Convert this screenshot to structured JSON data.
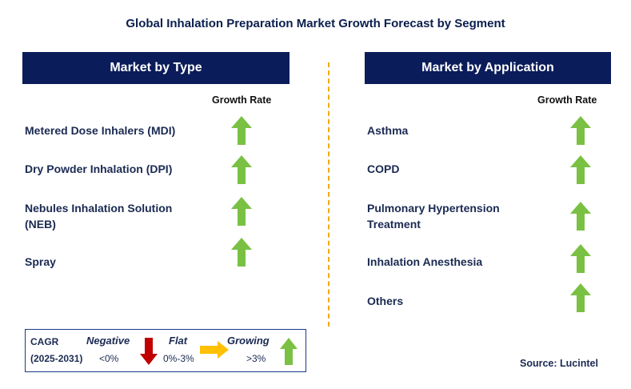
{
  "title": "Global Inhalation Preparation Market Growth Forecast by Segment",
  "left_panel": {
    "header": "Market by Type",
    "growth_label": "Growth Rate",
    "items": [
      {
        "label": "Metered Dose Inhalers (MDI)",
        "trend": "growing"
      },
      {
        "label": "Dry Powder Inhalation (DPI)",
        "trend": "growing"
      },
      {
        "label": "Nebules Inhalation Solution\n(NEB)",
        "trend": "growing"
      },
      {
        "label": "Spray",
        "trend": "growing"
      }
    ]
  },
  "right_panel": {
    "header": "Market by Application",
    "growth_label": "Growth Rate",
    "items": [
      {
        "label": "Asthma",
        "trend": "growing"
      },
      {
        "label": "COPD",
        "trend": "growing"
      },
      {
        "label": "Pulmonary Hypertension\nTreatment",
        "trend": "growing"
      },
      {
        "label": "Inhalation Anesthesia",
        "trend": "growing"
      },
      {
        "label": "Others",
        "trend": "growing"
      }
    ]
  },
  "legend": {
    "cagr_label": "CAGR",
    "period": "(2025-2031)",
    "negative_label": "Negative",
    "negative_range": "<0%",
    "flat_label": "Flat",
    "flat_range": "0%-3%",
    "growing_label": "Growing",
    "growing_range": ">3%"
  },
  "source": "Source: Lucintel",
  "colors": {
    "header_bg": "#0b1c5a",
    "growing_arrow": "#7ac143",
    "negative_arrow": "#c00000",
    "flat_arrow": "#ffc000",
    "divider": "#f4a81a"
  }
}
